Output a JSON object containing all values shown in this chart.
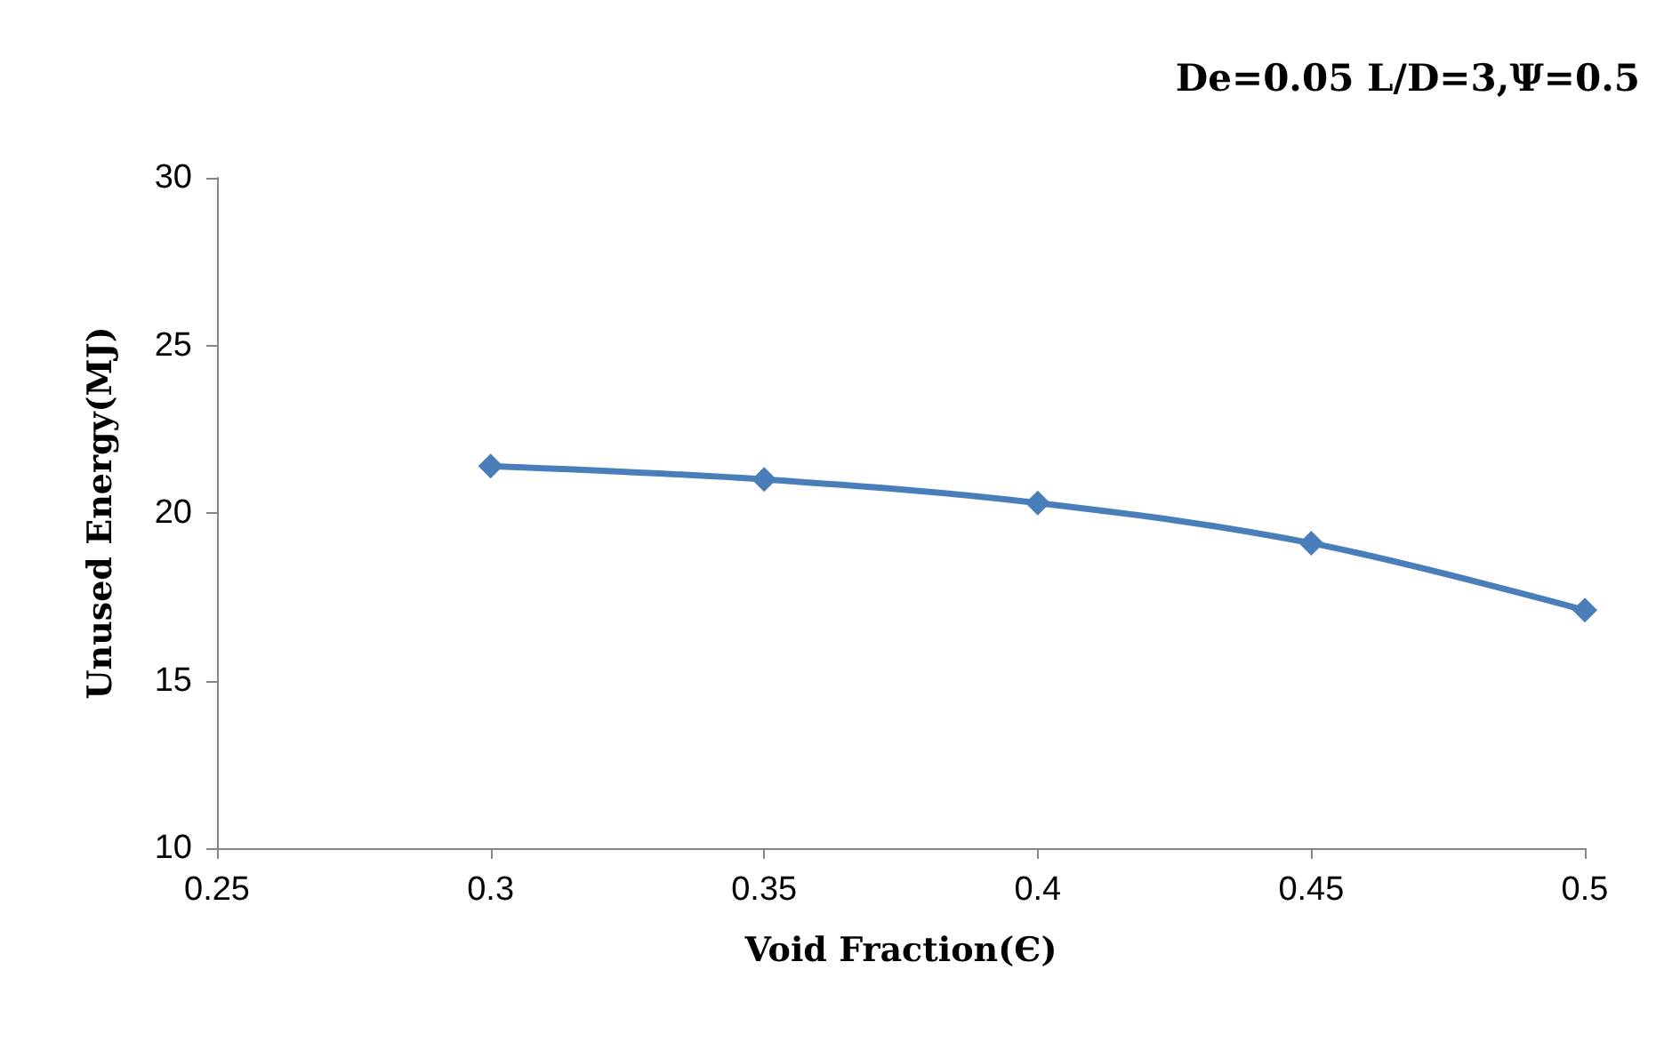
{
  "chart_data": {
    "type": "line",
    "title": "De=0.05 L/D=3,Ψ=0.5",
    "xlabel": "Void Fraction(Є)",
    "ylabel": "Unused Energy(MJ)",
    "x": [
      0.3,
      0.35,
      0.4,
      0.45,
      0.5
    ],
    "series": [
      {
        "color": "#4a7ebb",
        "values": [
          21.4,
          21.0,
          20.3,
          19.1,
          17.1
        ]
      }
    ],
    "xlim": [
      0.25,
      0.5
    ],
    "xticks": [
      0.25,
      0.3,
      0.35,
      0.4,
      0.45,
      0.5
    ],
    "ylim": [
      10,
      30
    ],
    "yticks": [
      10,
      15,
      20,
      25,
      30
    ],
    "marker": "diamond",
    "line_style": "solid"
  }
}
